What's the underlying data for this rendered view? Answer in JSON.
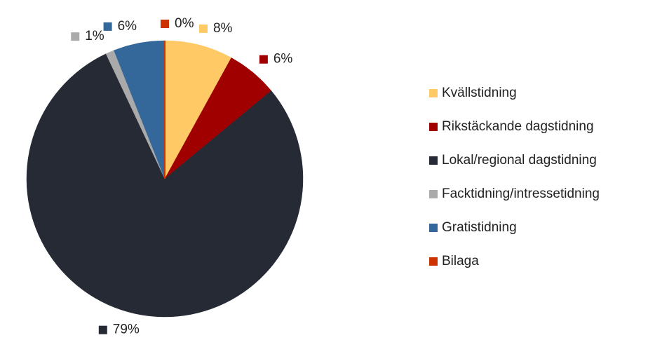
{
  "chart_data": {
    "type": "pie",
    "categories": [
      "Kvällstidning",
      "Rikstäckande dagstidning",
      "Lokal/regional dagstidning",
      "Facktidning/intressetidning",
      "Gratistidning",
      "Bilaga"
    ],
    "values": [
      8,
      6,
      79,
      1,
      6,
      0
    ],
    "value_labels": [
      "8%",
      "6%",
      "79%",
      "1%",
      "6%",
      "0%"
    ],
    "colors": [
      "#ffc966",
      "#a00000",
      "#252a35",
      "#aaaaaa",
      "#35689a",
      "#cc3300"
    ],
    "legend": "right"
  }
}
